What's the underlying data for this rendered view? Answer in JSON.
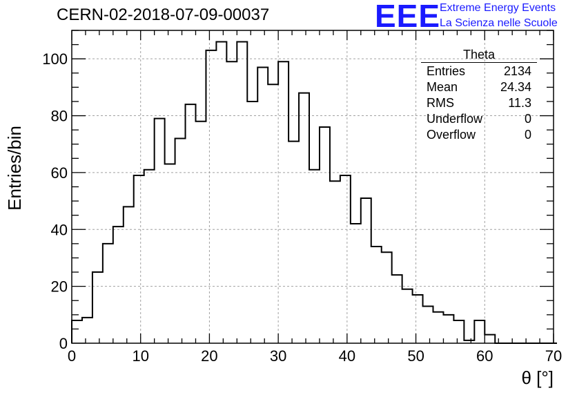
{
  "header": {
    "title": "CERN-02-2018-07-09-00037",
    "logo_text": "EEE",
    "logo_line1": "Extreme Energy Events",
    "logo_line2": "La Scienza nelle Scuole"
  },
  "stats_box": {
    "name": "Theta",
    "rows": [
      {
        "label": "Entries",
        "value": "2134"
      },
      {
        "label": "Mean",
        "value": "24.34"
      },
      {
        "label": "RMS",
        "value": "11.3"
      },
      {
        "label": "Underflow",
        "value": "0"
      },
      {
        "label": "Overflow",
        "value": "0"
      }
    ]
  },
  "colors": {
    "logo": "#1a1aff",
    "line": "#000000",
    "grid": "#a0a0a0"
  },
  "chart_data": {
    "type": "histogram",
    "title": "CERN-02-2018-07-09-00037",
    "xlabel": "θ [°]",
    "ylabel": "Entries/bin",
    "xlim": [
      0,
      70
    ],
    "ylim": [
      0,
      110
    ],
    "grid": true,
    "bin_width": 1.5,
    "x_ticks": [
      0,
      10,
      20,
      30,
      40,
      50,
      60,
      70
    ],
    "y_ticks": [
      0,
      20,
      40,
      60,
      80,
      100
    ],
    "bin_edges_start": 0,
    "values": [
      8,
      9,
      25,
      35,
      41,
      48,
      59,
      61,
      79,
      63,
      72,
      84,
      78,
      103,
      106,
      99,
      106,
      85,
      97,
      91,
      99,
      71,
      88,
      61,
      76,
      57,
      59,
      42,
      51,
      34,
      32,
      24,
      19,
      17,
      13,
      11,
      10,
      8,
      1,
      8,
      3,
      0,
      0,
      0,
      0,
      0,
      0
    ]
  }
}
